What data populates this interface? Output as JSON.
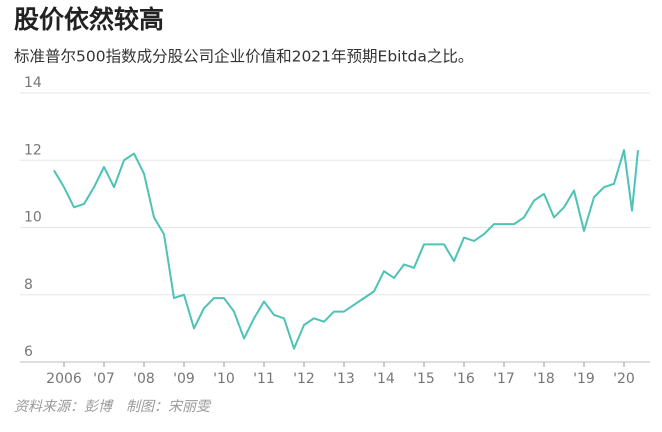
{
  "chart_data": {
    "type": "line",
    "title": "股价依然较高",
    "subtitle": "标准普尔500指数成分股公司企业价值和2021年预期Ebitda之比。",
    "source": "资料来源：彭博　制图：宋丽雯",
    "x": [
      2005.75,
      2006,
      2006.25,
      2006.5,
      2006.75,
      2007,
      2007.25,
      2007.5,
      2007.75,
      2008,
      2008.25,
      2008.5,
      2008.75,
      2009,
      2009.25,
      2009.5,
      2009.75,
      2010,
      2010.25,
      2010.5,
      2010.75,
      2011,
      2011.25,
      2011.5,
      2011.75,
      2012,
      2012.25,
      2012.5,
      2012.75,
      2013,
      2013.25,
      2013.5,
      2013.75,
      2014,
      2014.25,
      2014.5,
      2014.75,
      2015,
      2015.25,
      2015.5,
      2015.75,
      2016,
      2016.25,
      2016.5,
      2016.75,
      2017,
      2017.25,
      2017.5,
      2017.75,
      2018,
      2018.25,
      2018.5,
      2018.75,
      2019,
      2019.25,
      2019.5,
      2019.75,
      2020,
      2020.2,
      2020.35
    ],
    "series": [
      {
        "color": "#4cc3b5",
        "values": [
          11.7,
          11.2,
          10.6,
          10.7,
          11.2,
          11.8,
          11.2,
          12.0,
          12.2,
          11.6,
          10.3,
          9.8,
          7.9,
          8.0,
          7.0,
          7.6,
          7.9,
          7.9,
          7.5,
          6.7,
          7.3,
          7.8,
          7.4,
          7.3,
          6.4,
          7.1,
          7.3,
          7.2,
          7.5,
          7.5,
          7.7,
          7.9,
          8.1,
          8.7,
          8.5,
          8.9,
          8.8,
          9.5,
          9.5,
          9.5,
          9.0,
          9.7,
          9.6,
          9.8,
          10.1,
          10.1,
          10.1,
          10.3,
          10.8,
          11.0,
          10.3,
          10.6,
          11.1,
          9.9,
          10.9,
          11.2,
          11.3,
          12.3,
          10.5,
          12.3
        ]
      }
    ],
    "xlim": [
      2005.5,
      2020.5
    ],
    "xticks": [
      {
        "value": 2006,
        "label": "2006"
      },
      {
        "value": 2007,
        "label": "'07"
      },
      {
        "value": 2008,
        "label": "'08"
      },
      {
        "value": 2009,
        "label": "'09"
      },
      {
        "value": 2010,
        "label": "'10"
      },
      {
        "value": 2011,
        "label": "'11"
      },
      {
        "value": 2012,
        "label": "'12"
      },
      {
        "value": 2013,
        "label": "'13"
      },
      {
        "value": 2014,
        "label": "'14"
      },
      {
        "value": 2015,
        "label": "'15"
      },
      {
        "value": 2016,
        "label": "'16"
      },
      {
        "value": 2017,
        "label": "'17"
      },
      {
        "value": 2018,
        "label": "'18"
      },
      {
        "value": 2019,
        "label": "'19"
      },
      {
        "value": 2020,
        "label": "'20"
      }
    ],
    "ylim": [
      6,
      14
    ],
    "yticks": [
      6,
      8,
      10,
      12,
      14
    ],
    "grid": true
  }
}
